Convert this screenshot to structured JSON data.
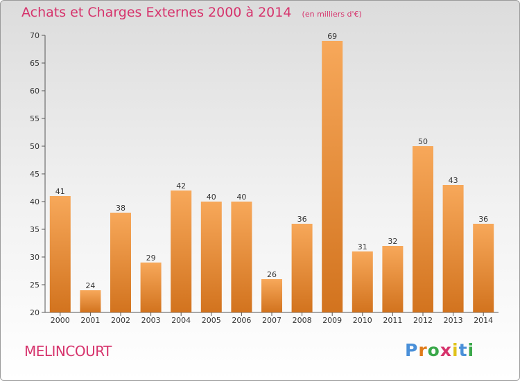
{
  "header": {
    "title": "Achats et Charges Externes 2000 à 2014",
    "unit": "(en milliers d'€)"
  },
  "commune": "MELINCOURT",
  "brand": {
    "text": "Proxiti",
    "letters": [
      {
        "ch": "P",
        "color": "#4a90d9"
      },
      {
        "ch": "r",
        "color": "#e07b1a"
      },
      {
        "ch": "o",
        "color": "#3aa84a"
      },
      {
        "ch": "x",
        "color": "#d6336c"
      },
      {
        "ch": "i",
        "color": "#e0c21a"
      },
      {
        "ch": "t",
        "color": "#4a90d9"
      },
      {
        "ch": "i",
        "color": "#3aa84a"
      }
    ]
  },
  "colors": {
    "bar_top": "#f7a85a",
    "bar_bottom": "#d2731e",
    "accent": "#d6336c"
  },
  "chart_data": {
    "type": "bar",
    "title": "Achats et Charges Externes 2000 à 2014",
    "subtitle": "(en milliers d'€)",
    "categories": [
      "2000",
      "2001",
      "2002",
      "2003",
      "2004",
      "2005",
      "2006",
      "2007",
      "2008",
      "2009",
      "2010",
      "2011",
      "2012",
      "2013",
      "2014"
    ],
    "values": [
      41,
      24,
      38,
      29,
      42,
      40,
      40,
      26,
      36,
      69,
      31,
      32,
      50,
      43,
      36
    ],
    "ylim": [
      20,
      70
    ],
    "yticks": [
      20,
      25,
      30,
      35,
      40,
      45,
      50,
      55,
      60,
      65,
      70
    ],
    "grid": false,
    "xlabel": "",
    "ylabel": ""
  }
}
